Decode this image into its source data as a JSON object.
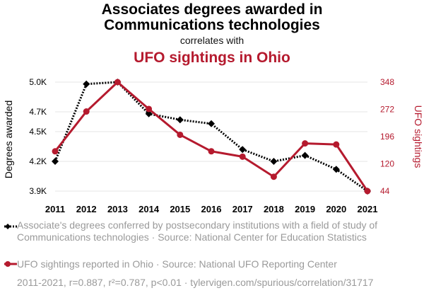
{
  "header": {
    "title_line1": "Associates degrees awarded in",
    "title_line2": "Communications technologies",
    "subtitle": "correlates with",
    "title_line3": "UFO sightings in Ohio"
  },
  "colors": {
    "series1": "#000000",
    "series2": "#b51a2e",
    "grid": "#e6e6e6",
    "muted": "#9a9a9a"
  },
  "chart_data": {
    "type": "line",
    "x": [
      "2011",
      "2012",
      "2013",
      "2014",
      "2015",
      "2016",
      "2017",
      "2018",
      "2019",
      "2020",
      "2021"
    ],
    "grid": true,
    "y_left": {
      "label": "Degrees awarded",
      "ticks": [
        "3.9K",
        "4.2K",
        "4.5K",
        "4.7K",
        "5.0K"
      ],
      "tick_values": [
        3900,
        4200,
        4500,
        4700,
        5000
      ],
      "range": [
        3900,
        5000
      ]
    },
    "y_right": {
      "label": "UFO sightings",
      "ticks": [
        "44",
        "120",
        "196",
        "272",
        "348"
      ],
      "tick_values": [
        44,
        120,
        196,
        272,
        348
      ],
      "range": [
        44,
        348
      ]
    },
    "series": [
      {
        "axis": "left",
        "color": "#000000",
        "style": "dotted",
        "marker": "diamond",
        "values": [
          4200,
          4980,
          5000,
          4680,
          4620,
          4580,
          4320,
          4200,
          4260,
          4120,
          3900
        ]
      },
      {
        "axis": "right",
        "color": "#b51a2e",
        "style": "solid",
        "marker": "circle",
        "values": [
          155,
          266,
          348,
          273,
          201,
          155,
          140,
          84,
          177,
          174,
          44
        ]
      }
    ]
  },
  "legend": [
    {
      "text": "Associate's degrees conferred by postsecondary institutions with a field of study of Communications technologies · Source: National Center for Education Statistics"
    },
    {
      "text": "UFO sightings reported in Ohio · Source: National UFO Reporting Center"
    }
  ],
  "footer": "2011-2021, r=0.887, r²=0.787, p<0.01 · tylervigen.com/spurious/correlation/31717"
}
